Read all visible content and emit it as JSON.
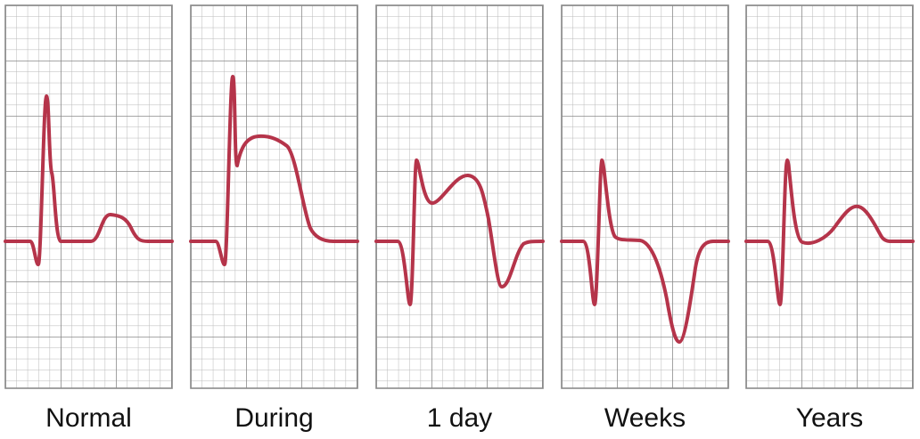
{
  "panels": [
    {
      "label": "Normal"
    },
    {
      "label": "During"
    },
    {
      "label": "1 day"
    },
    {
      "label": "Weeks"
    },
    {
      "label": "Years"
    }
  ]
}
